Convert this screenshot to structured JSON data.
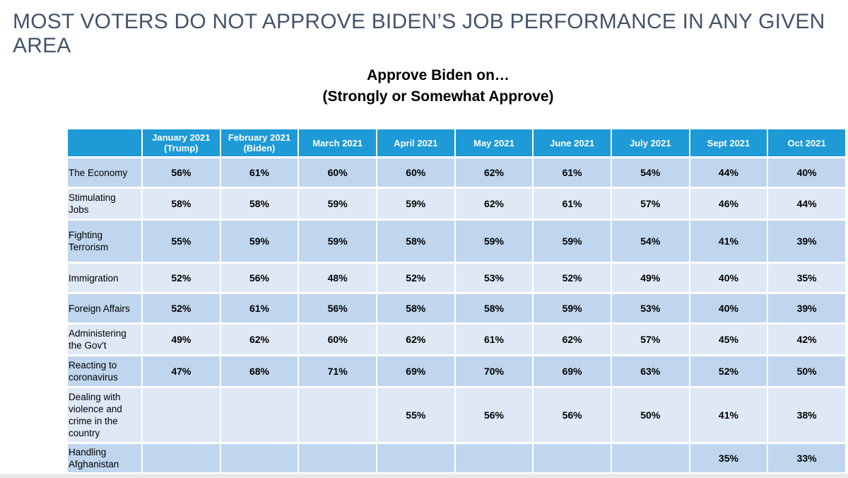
{
  "headline": "MOST VOTERS DO NOT APPROVE BIDEN’S JOB PERFORMANCE IN ANY GIVEN AREA",
  "chart_data": {
    "type": "table",
    "title": "Approve Biden on…",
    "subtitle": "(Strongly or Somewhat Approve)",
    "columns": [
      {
        "label": "January 2021",
        "sub": "(Trump)"
      },
      {
        "label": "February 2021",
        "sub": "(Biden)"
      },
      {
        "label": "March 2021",
        "sub": ""
      },
      {
        "label": "April 2021",
        "sub": ""
      },
      {
        "label": "May 2021",
        "sub": ""
      },
      {
        "label": "June 2021",
        "sub": ""
      },
      {
        "label": "July 2021",
        "sub": ""
      },
      {
        "label": "Sept 2021",
        "sub": ""
      },
      {
        "label": "Oct 2021",
        "sub": ""
      }
    ],
    "rows": [
      {
        "label": [
          "The Economy"
        ],
        "values": [
          "56%",
          "61%",
          "60%",
          "60%",
          "62%",
          "61%",
          "54%",
          "44%",
          "40%"
        ]
      },
      {
        "label": [
          "Stimulating",
          "Jobs"
        ],
        "values": [
          "58%",
          "58%",
          "59%",
          "59%",
          "62%",
          "61%",
          "57%",
          "46%",
          "44%"
        ]
      },
      {
        "label": [
          "Fighting",
          "Terrorism"
        ],
        "values": [
          "55%",
          "59%",
          "59%",
          "58%",
          "59%",
          "59%",
          "54%",
          "41%",
          "39%"
        ]
      },
      {
        "label": [
          "Immigration"
        ],
        "values": [
          "52%",
          "56%",
          "48%",
          "52%",
          "53%",
          "52%",
          "49%",
          "40%",
          "35%"
        ]
      },
      {
        "label": [
          "Foreign Affairs"
        ],
        "values": [
          "52%",
          "61%",
          "56%",
          "58%",
          "58%",
          "59%",
          "53%",
          "40%",
          "39%"
        ]
      },
      {
        "label": [
          "Administering",
          "the Gov't"
        ],
        "values": [
          "49%",
          "62%",
          "60%",
          "62%",
          "61%",
          "62%",
          "57%",
          "45%",
          "42%"
        ]
      },
      {
        "label": [
          "Reacting to",
          "coronavirus"
        ],
        "values": [
          "47%",
          "68%",
          "71%",
          "69%",
          "70%",
          "69%",
          "63%",
          "52%",
          "50%"
        ]
      },
      {
        "label": [
          "Dealing with",
          "violence and",
          "crime in the",
          "country"
        ],
        "values": [
          "",
          "",
          "",
          "55%",
          "56%",
          "56%",
          "50%",
          "41%",
          "38%"
        ]
      },
      {
        "label": [
          "Handling",
          "Afghanistan"
        ],
        "values": [
          "",
          "",
          "",
          "",
          "",
          "",
          "",
          "35%",
          "33%"
        ]
      }
    ]
  },
  "colors": {
    "header": "#1e9ad6",
    "row_dark": "#bfd6ee",
    "row_light": "#dfe9f5",
    "headline": "#44546a"
  }
}
